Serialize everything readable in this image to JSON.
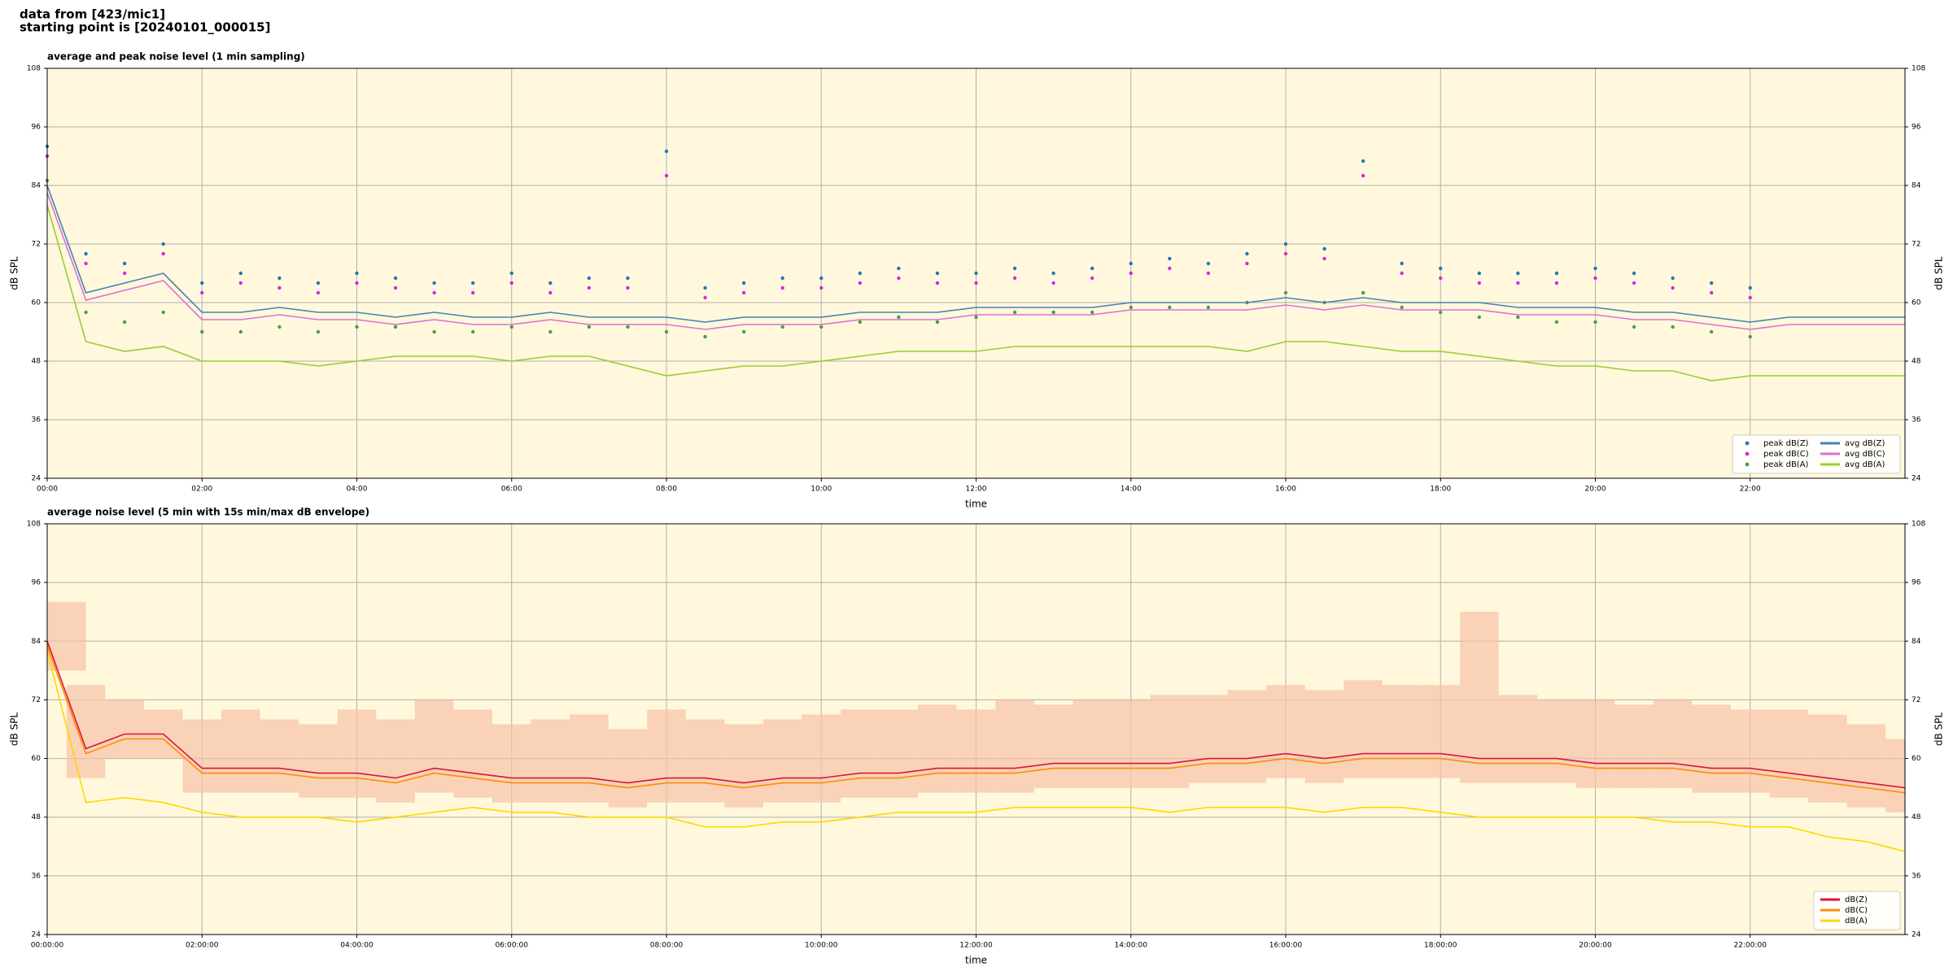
{
  "header": {
    "line1": "data from [423/mic1]",
    "line2": "starting point is [20240101_000015]"
  },
  "chart_data": [
    {
      "type": "line",
      "title": "average and peak noise level (1 min sampling)",
      "xlabel": "time",
      "ylabel": "dB SPL",
      "x": [
        "00:00",
        "00:30",
        "01:00",
        "01:30",
        "02:00",
        "02:30",
        "03:00",
        "03:30",
        "04:00",
        "04:30",
        "05:00",
        "05:30",
        "06:00",
        "06:30",
        "07:00",
        "07:30",
        "08:00",
        "08:30",
        "09:00",
        "09:30",
        "10:00",
        "10:30",
        "11:00",
        "11:30",
        "12:00",
        "12:30",
        "13:00",
        "13:30",
        "14:00",
        "14:30",
        "15:00",
        "15:30",
        "16:00",
        "16:30",
        "17:00",
        "17:30",
        "18:00",
        "18:30",
        "19:00",
        "19:30",
        "20:00",
        "20:30",
        "21:00",
        "21:30",
        "22:00",
        "22:30",
        "23:00",
        "23:30",
        "24:00"
      ],
      "xlim": [
        "00:00",
        "24:00"
      ],
      "xticks": [
        "00:00",
        "02:00",
        "04:00",
        "06:00",
        "08:00",
        "10:00",
        "12:00",
        "14:00",
        "16:00",
        "18:00",
        "20:00",
        "22:00"
      ],
      "ylim": [
        24,
        108
      ],
      "yticks": [
        24,
        36,
        48,
        60,
        72,
        84,
        96,
        108
      ],
      "grid": true,
      "legend": "lower right",
      "legend_columns": 2,
      "series": [
        {
          "name": "peak dB(Z)",
          "type": "scatter",
          "color": "#1f77b4",
          "values": [
            92,
            70,
            68,
            72,
            64,
            66,
            65,
            64,
            66,
            65,
            64,
            64,
            66,
            64,
            65,
            65,
            91,
            63,
            64,
            65,
            65,
            66,
            67,
            66,
            66,
            67,
            66,
            67,
            68,
            69,
            68,
            70,
            72,
            71,
            89,
            68,
            67,
            66,
            66,
            66,
            67,
            66,
            65,
            64,
            63,
            null,
            null,
            null,
            null
          ]
        },
        {
          "name": "peak dB(C)",
          "type": "scatter",
          "color": "#e020e0",
          "values": [
            90,
            68,
            66,
            70,
            62,
            64,
            63,
            62,
            64,
            63,
            62,
            62,
            64,
            62,
            63,
            63,
            86,
            61,
            62,
            63,
            63,
            64,
            65,
            64,
            64,
            65,
            64,
            65,
            66,
            67,
            66,
            68,
            70,
            69,
            86,
            66,
            65,
            64,
            64,
            64,
            65,
            64,
            63,
            62,
            61,
            null,
            null,
            null,
            null
          ]
        },
        {
          "name": "peak dB(A)",
          "type": "scatter",
          "color": "#4d9a4d",
          "values": [
            85,
            58,
            56,
            58,
            54,
            54,
            55,
            54,
            55,
            55,
            54,
            54,
            55,
            54,
            55,
            55,
            54,
            53,
            54,
            55,
            55,
            56,
            57,
            56,
            57,
            58,
            58,
            58,
            59,
            59,
            59,
            60,
            62,
            60,
            62,
            59,
            58,
            57,
            57,
            56,
            56,
            55,
            55,
            54,
            53,
            null,
            null,
            null,
            null
          ]
        },
        {
          "name": "avg dB(Z)",
          "type": "line",
          "color": "#4682b4",
          "values": [
            84,
            62,
            64,
            66,
            58,
            58,
            59,
            58,
            58,
            57,
            58,
            57,
            57,
            58,
            57,
            57,
            57,
            56,
            57,
            57,
            57,
            58,
            58,
            58,
            59,
            59,
            59,
            59,
            60,
            60,
            60,
            60,
            61,
            60,
            61,
            60,
            60,
            60,
            59,
            59,
            59,
            58,
            58,
            57,
            56,
            57,
            57,
            57,
            57
          ]
        },
        {
          "name": "avg dB(C)",
          "type": "line",
          "color": "#da70d6",
          "values": [
            82.5,
            60.5,
            62.5,
            64.5,
            56.5,
            56.5,
            57.5,
            56.5,
            56.5,
            55.5,
            56.5,
            55.5,
            55.5,
            56.5,
            55.5,
            55.5,
            55.5,
            54.5,
            55.5,
            55.5,
            55.5,
            56.5,
            56.5,
            56.5,
            57.5,
            57.5,
            57.5,
            57.5,
            58.5,
            58.5,
            58.5,
            58.5,
            59.5,
            58.5,
            59.5,
            58.5,
            58.5,
            58.5,
            57.5,
            57.5,
            57.5,
            56.5,
            56.5,
            55.5,
            54.5,
            55.5,
            55.5,
            55.5,
            55.5
          ]
        },
        {
          "name": "avg dB(A)",
          "type": "line",
          "color": "#9acd32",
          "values": [
            80,
            52,
            50,
            51,
            48,
            48,
            48,
            47,
            48,
            49,
            49,
            49,
            48,
            49,
            49,
            47,
            45,
            46,
            47,
            47,
            48,
            49,
            50,
            50,
            50,
            51,
            51,
            51,
            51,
            51,
            51,
            50,
            52,
            52,
            51,
            50,
            50,
            49,
            48,
            47,
            47,
            46,
            46,
            44,
            45,
            45,
            45,
            45,
            45
          ]
        }
      ]
    },
    {
      "type": "line",
      "title": "average noise level (5 min with 15s min/max dB envelope)",
      "xlabel": "time",
      "ylabel": "dB SPL",
      "x": [
        "00:00",
        "00:30",
        "01:00",
        "01:30",
        "02:00",
        "02:30",
        "03:00",
        "03:30",
        "04:00",
        "04:30",
        "05:00",
        "05:30",
        "06:00",
        "06:30",
        "07:00",
        "07:30",
        "08:00",
        "08:30",
        "09:00",
        "09:30",
        "10:00",
        "10:30",
        "11:00",
        "11:30",
        "12:00",
        "12:30",
        "13:00",
        "13:30",
        "14:00",
        "14:30",
        "15:00",
        "15:30",
        "16:00",
        "16:30",
        "17:00",
        "17:30",
        "18:00",
        "18:30",
        "19:00",
        "19:30",
        "20:00",
        "20:30",
        "21:00",
        "21:30",
        "22:00",
        "22:30",
        "23:00",
        "23:30",
        "24:00"
      ],
      "xlim": [
        "00:00",
        "24:00"
      ],
      "xticks": [
        "00:00:00",
        "02:00:00",
        "04:00:00",
        "06:00:00",
        "08:00:00",
        "10:00:00",
        "12:00:00",
        "14:00:00",
        "16:00:00",
        "18:00:00",
        "20:00:00",
        "22:00:00"
      ],
      "ylim": [
        24,
        108
      ],
      "yticks": [
        24,
        36,
        48,
        60,
        72,
        84,
        96,
        108
      ],
      "grid": true,
      "legend": "lower right",
      "legend_columns": 1,
      "envelope": {
        "color": "#f7c2a8",
        "lower": [
          78,
          56,
          60,
          60,
          53,
          53,
          53,
          52,
          52,
          51,
          53,
          52,
          51,
          51,
          51,
          50,
          51,
          51,
          50,
          51,
          51,
          52,
          52,
          53,
          53,
          53,
          54,
          54,
          54,
          54,
          55,
          55,
          56,
          55,
          56,
          56,
          56,
          55,
          55,
          55,
          54,
          54,
          54,
          53,
          53,
          52,
          51,
          50,
          49
        ],
        "upper": [
          92,
          75,
          72,
          70,
          68,
          70,
          68,
          67,
          70,
          68,
          72,
          70,
          67,
          68,
          69,
          66,
          70,
          68,
          67,
          68,
          69,
          70,
          70,
          71,
          70,
          72,
          71,
          72,
          72,
          73,
          73,
          74,
          75,
          74,
          76,
          75,
          75,
          90,
          73,
          72,
          72,
          71,
          72,
          71,
          70,
          70,
          69,
          67,
          64
        ]
      },
      "series": [
        {
          "name": "dB(Z)",
          "type": "line",
          "color": "#dc143c",
          "values": [
            84,
            62,
            65,
            65,
            58,
            58,
            58,
            57,
            57,
            56,
            58,
            57,
            56,
            56,
            56,
            55,
            56,
            56,
            55,
            56,
            56,
            57,
            57,
            58,
            58,
            58,
            59,
            59,
            59,
            59,
            60,
            60,
            61,
            60,
            61,
            61,
            61,
            60,
            60,
            60,
            59,
            59,
            59,
            58,
            58,
            57,
            56,
            55,
            54
          ]
        },
        {
          "name": "dB(C)",
          "type": "line",
          "color": "#ff8c00",
          "values": [
            83,
            61,
            64,
            64,
            57,
            57,
            57,
            56,
            56,
            55,
            57,
            56,
            55,
            55,
            55,
            54,
            55,
            55,
            54,
            55,
            55,
            56,
            56,
            57,
            57,
            57,
            58,
            58,
            58,
            58,
            59,
            59,
            60,
            59,
            60,
            60,
            60,
            59,
            59,
            59,
            58,
            58,
            58,
            57,
            57,
            56,
            55,
            54,
            53
          ]
        },
        {
          "name": "dB(A)",
          "type": "line",
          "color": "#ffd700",
          "values": [
            82,
            51,
            52,
            51,
            49,
            48,
            48,
            48,
            47,
            48,
            49,
            50,
            49,
            49,
            48,
            48,
            48,
            46,
            46,
            47,
            47,
            48,
            49,
            49,
            49,
            50,
            50,
            50,
            50,
            49,
            50,
            50,
            50,
            49,
            50,
            50,
            49,
            48,
            48,
            48,
            48,
            48,
            47,
            47,
            46,
            46,
            44,
            43,
            41
          ]
        }
      ]
    }
  ]
}
